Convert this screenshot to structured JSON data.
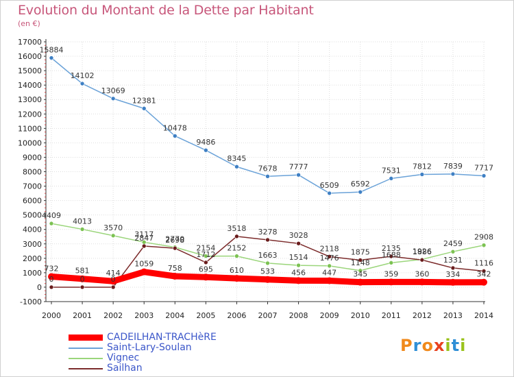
{
  "header": {
    "title": "Evolution du Montant de la Dette par Habitant",
    "subtitle": "(en €)"
  },
  "logo": {
    "text": "Proxiti",
    "colors": [
      "#f08a1c",
      "#2f8fd6",
      "#f08a1c",
      "#e8411f",
      "#9ac21b",
      "#2f8fd6",
      "#9ac21b"
    ]
  },
  "colors": {
    "title": "#c7567a",
    "legend_text": "#3b56c9",
    "grid": "#dddddd"
  },
  "chart_data": {
    "type": "line",
    "title": "Evolution du Montant de la Dette par Habitant",
    "ylabel": "(en €)",
    "xlabel": "",
    "ylim": [
      -1000,
      17000
    ],
    "y_ticks": [
      -1000,
      0,
      1000,
      2000,
      3000,
      4000,
      5000,
      6000,
      7000,
      8000,
      9000,
      10000,
      11000,
      12000,
      13000,
      14000,
      15000,
      16000,
      17000
    ],
    "grid": true,
    "legend_position": "bottom-left",
    "x": [
      "2000",
      "2001",
      "2002",
      "2003",
      "2004",
      "2005",
      "2006",
      "2007",
      "2008",
      "2009",
      "2010",
      "2011",
      "2012",
      "2013",
      "2014"
    ],
    "series": [
      {
        "name": "CADEILHAN-TRACHèRE",
        "color": "#ff0000",
        "marker": "#ff0000",
        "width": 9,
        "values": [
          732,
          581,
          414,
          1059,
          758,
          695,
          610,
          533,
          456,
          447,
          345,
          359,
          360,
          334,
          342
        ],
        "labels": [
          "732",
          "581",
          "414",
          "1059",
          "758",
          "695",
          "610",
          "533",
          "456",
          "447",
          "345",
          "359",
          "360",
          "334",
          "342"
        ]
      },
      {
        "name": "Saint-Lary-Soulan",
        "color": "#6aa2d8",
        "marker": "#3f80c4",
        "width": 1.5,
        "values": [
          15884,
          14102,
          13069,
          12381,
          10478,
          9486,
          8345,
          7678,
          7777,
          6509,
          6592,
          7531,
          7812,
          7839,
          7717
        ],
        "labels": [
          "15884",
          "14102",
          "13069",
          "12381",
          "10478",
          "9486",
          "8345",
          "7678",
          "7777",
          "6509",
          "6592",
          "7531",
          "7812",
          "7839",
          "7717"
        ]
      },
      {
        "name": "Vignec",
        "color": "#9ad57a",
        "marker": "#7cc252",
        "width": 1.5,
        "values": [
          4409,
          4013,
          3570,
          3117,
          2770,
          2154,
          2152,
          1663,
          1514,
          1476,
          1148,
          1688,
          1926,
          2459,
          2908
        ],
        "labels": [
          "4409",
          "4013",
          "3570",
          "3117",
          "2770",
          "2154",
          "2152",
          "1663",
          "1514",
          "1476",
          "1148",
          "1688",
          "1926",
          "2459",
          "2908"
        ]
      },
      {
        "name": "Sailhan",
        "color": "#7b2a2a",
        "marker": "#6a1d1d",
        "width": 1.5,
        "values": [
          0,
          0,
          0,
          2847,
          2698,
          1712,
          3518,
          3278,
          3028,
          2118,
          1875,
          2135,
          1886,
          1331,
          1116
        ],
        "labels": [
          "0",
          "0",
          "0",
          "2847",
          "2698",
          "1712",
          "3518",
          "3278",
          "3028",
          "2118",
          "1875",
          "2135",
          "1886",
          "1331",
          "1116"
        ]
      }
    ]
  }
}
